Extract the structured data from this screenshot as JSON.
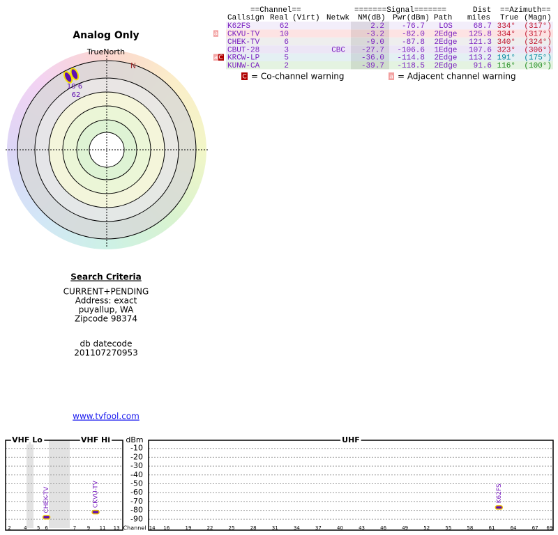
{
  "polar": {
    "title": "Analog Only",
    "north_label": "TrueNorth",
    "n_label": "N",
    "marker_azimuths": [
      332,
      337
    ],
    "marker_labels": [
      "10·6",
      "62"
    ]
  },
  "table": {
    "group_headers": [
      "==Channel==",
      "=======Signal=======",
      "Dist",
      "==Azimuth=="
    ],
    "columns": [
      "Callsign",
      "Real",
      "(Virt)",
      "Netwk",
      "NM(dB)",
      "Pwr(dBm)",
      "Path",
      "miles",
      "True",
      "(Magn)"
    ],
    "rows": [
      {
        "callsign": "K62FS",
        "real": "62",
        "nm": "2.2",
        "pwr": "-76.7",
        "path": "LOS",
        "dist": "68.7",
        "true": "334°",
        "magn": "(317°)",
        "bg": "#f3eefa",
        "az_color": "#c0102a"
      },
      {
        "flags": [
          "a"
        ],
        "callsign": "CKVU-TV",
        "real": "10",
        "nm": "-3.2",
        "pwr": "-82.0",
        "path": "2Edge",
        "dist": "125.8",
        "true": "334°",
        "magn": "(317°)",
        "bg": "#fde3e3",
        "az_color": "#c0102a"
      },
      {
        "callsign": "CHEK-TV",
        "real": "6",
        "nm": "-9.0",
        "pwr": "-87.8",
        "path": "2Edge",
        "dist": "121.3",
        "true": "340°",
        "magn": "(324°)",
        "bg": "#eeeeee",
        "az_color": "#c0102a"
      },
      {
        "callsign": "CBUT-28",
        "real": "3",
        "netwk": "CBC",
        "nm": "-27.7",
        "pwr": "-106.6",
        "path": "1Edge",
        "dist": "107.6",
        "true": "323°",
        "magn": "(306°)",
        "bg": "#ece6f6",
        "az_color": "#c0102a"
      },
      {
        "flags": [
          "a",
          "C"
        ],
        "callsign": "KRCW-LP",
        "real": "5",
        "nm": "-36.0",
        "pwr": "-114.8",
        "path": "2Edge",
        "dist": "113.2",
        "true": "191°",
        "magn": "(175°)",
        "bg": "#e4f0f3",
        "az_color": "#00879e"
      },
      {
        "callsign": "KUNW-CA",
        "real": "2",
        "nm": "-39.7",
        "pwr": "-118.5",
        "path": "2Edge",
        "dist": "91.6",
        "true": "116°",
        "magn": "(100°)",
        "bg": "#e4f3e1",
        "az_color": "#1a8a1a"
      }
    ]
  },
  "legend": {
    "co_flag": "C",
    "co_text": "= Co-channel warning",
    "adj_flag": "a",
    "adj_text": "= Adjacent channel warning"
  },
  "search": {
    "title": "Search Criteria",
    "lines": [
      "CURRENT+PENDING",
      "Address: exact",
      "puyallup, WA",
      "Zipcode 98374"
    ],
    "date_lines": [
      "db datecode",
      "201107270953"
    ]
  },
  "link": "www.tvfool.com",
  "spectrum": {
    "sections": [
      "VHF Lo",
      "VHF Hi",
      "UHF"
    ],
    "y_label": "dBm",
    "x_label": "Channel",
    "ylim": [
      0,
      -100
    ],
    "yticks": [
      -10,
      -20,
      -30,
      -40,
      -50,
      -60,
      -70,
      -80,
      -90
    ],
    "vhf_ticks": [
      2,
      4,
      5,
      6,
      7,
      9,
      11,
      13
    ],
    "uhf_ticks": [
      14,
      16,
      19,
      22,
      25,
      28,
      31,
      34,
      37,
      40,
      43,
      46,
      49,
      52,
      55,
      58,
      61,
      64,
      67,
      69
    ],
    "stations": [
      {
        "label": "CHEK-TV",
        "channel": 6,
        "dbm": -87.8
      },
      {
        "label": "CKVU-TV",
        "channel": 10,
        "dbm": -82.0
      },
      {
        "label": "K62FS",
        "channel": 62,
        "dbm": -76.7
      }
    ]
  }
}
